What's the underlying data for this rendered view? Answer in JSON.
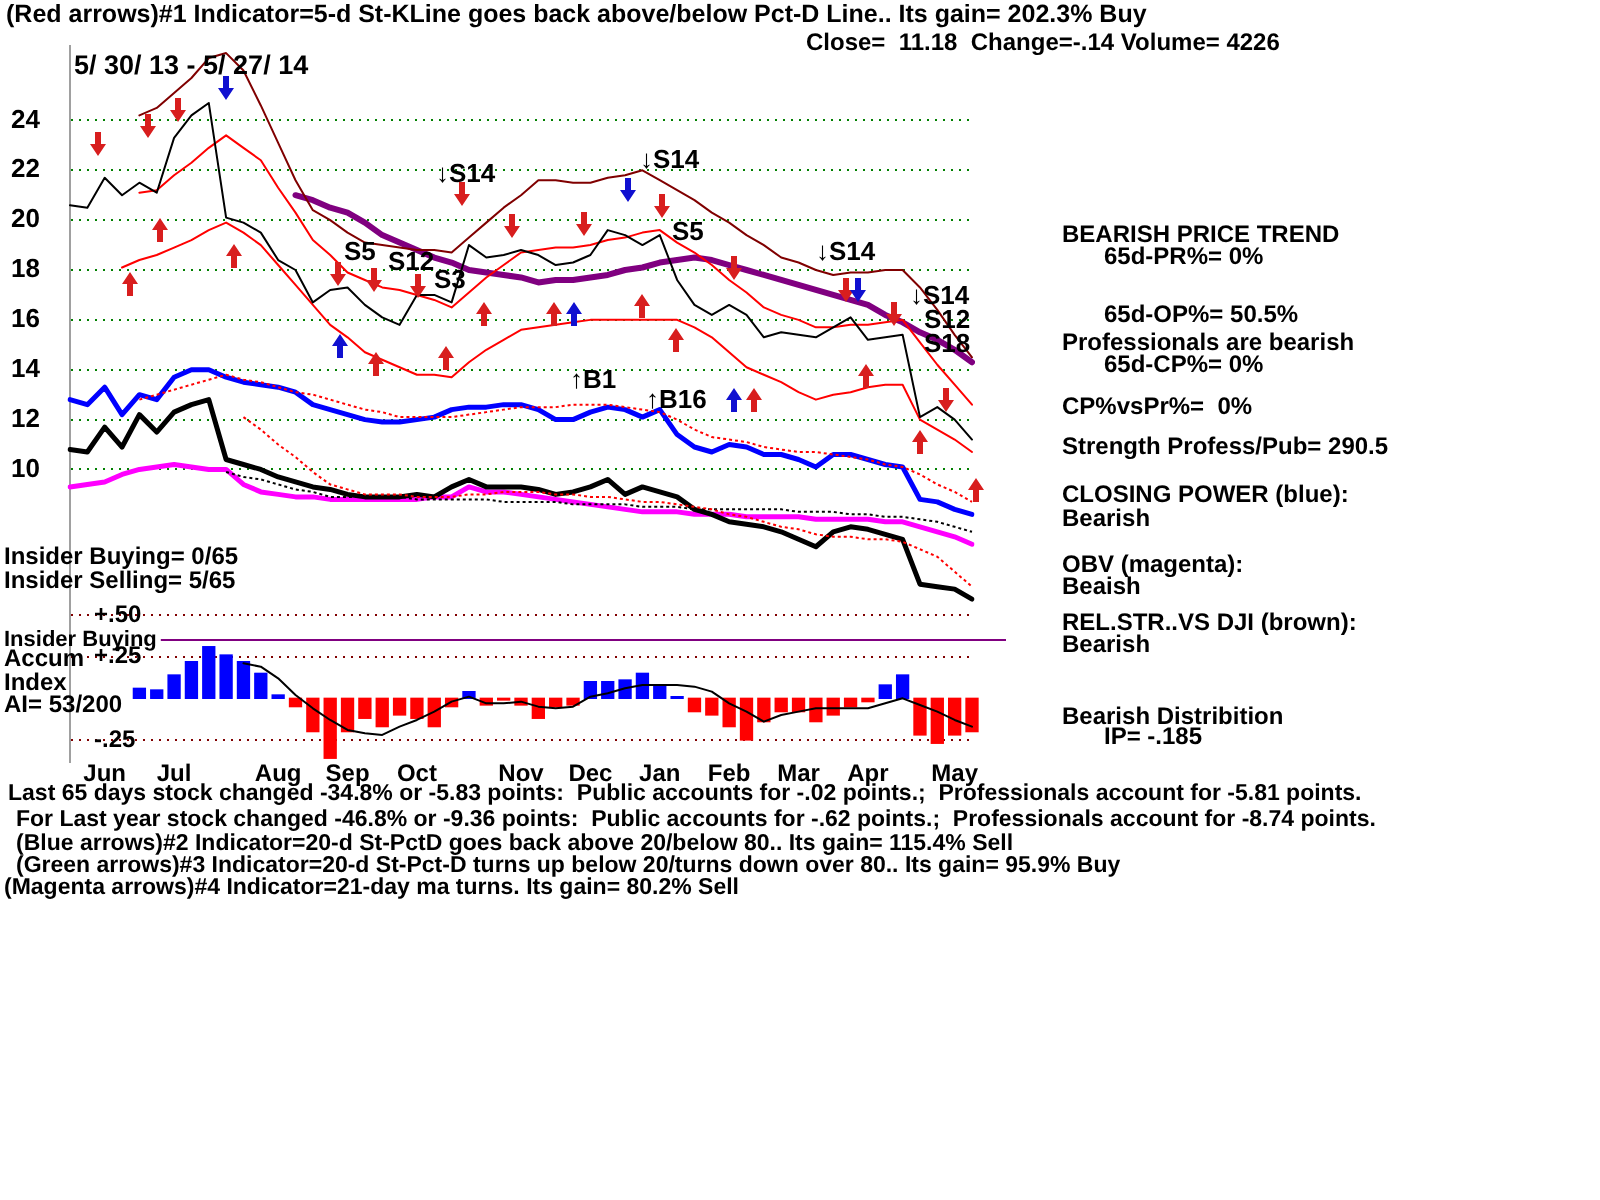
{
  "chart_data": [
    {
      "type": "line",
      "title": "(Red arrows)#1 Indicator=5-d St-KLine goes back above/below Pct-D Line.. Its gain= 202.3% Buy",
      "subtitle": "Close=  11.18  Change=-.14 Volume= 4226",
      "annotations": [
        "5/ 30/ 13 - 5/ 27/ 14",
        "Insider Buying= 0/65",
        "Insider Selling= 5/65",
        "↓S14",
        "S5",
        "S12",
        "S3",
        "↓S14",
        "S5",
        "↑B1",
        "↑B16",
        "↓S14",
        "↓S14",
        "S12",
        "S18"
      ],
      "categories": [
        null,
        null,
        null,
        null,
        null,
        null,
        null,
        null,
        null,
        null,
        null,
        null,
        null,
        null,
        null,
        null,
        null,
        null,
        null,
        null,
        null,
        null,
        null,
        null,
        null,
        null,
        null,
        null,
        null,
        null,
        null,
        null,
        null,
        null,
        null,
        null,
        null,
        null,
        null,
        null,
        null,
        null,
        null,
        null,
        null,
        null,
        null,
        null,
        null,
        null,
        null,
        null,
        null
      ],
      "ylim": [
        4.5,
        27
      ],
      "yticks": [
        10,
        12,
        14,
        16,
        18,
        20,
        22,
        24
      ],
      "grid": "y",
      "marker": "none",
      "series": [
        {
          "color": "#000000",
          "values": [
            20.6,
            20.5,
            21.7,
            21.0,
            21.5,
            21.1,
            23.3,
            24.2,
            24.7,
            20.1,
            19.9,
            19.5,
            18.4,
            18.0,
            16.7,
            17.2,
            17.3,
            16.6,
            16.1,
            15.8,
            17.0,
            17.0,
            16.7,
            19.0,
            18.5,
            18.6,
            18.8,
            18.6,
            18.2,
            18.3,
            18.6,
            19.6,
            19.4,
            19.0,
            19.4,
            17.6,
            16.6,
            16.2,
            16.6,
            16.2,
            15.3,
            15.5,
            15.4,
            15.3,
            15.7,
            16.1,
            15.2,
            15.3,
            15.4,
            12.1,
            12.5,
            12.0,
            11.2
          ]
        },
        {
          "color": "#ff0000",
          "values": [
            null,
            null,
            null,
            null,
            21.1,
            21.2,
            21.8,
            22.3,
            22.9,
            23.4,
            22.9,
            22.4,
            21.3,
            20.3,
            19.2,
            18.6,
            17.9,
            17.6,
            17.3,
            17.2,
            17.0,
            16.8,
            16.5,
            17.1,
            17.7,
            18.2,
            18.7,
            18.8,
            18.9,
            18.9,
            19.0,
            19.2,
            19.3,
            19.5,
            19.6,
            19.1,
            18.7,
            18.2,
            17.6,
            17.1,
            16.5,
            16.2,
            16.0,
            15.7,
            15.7,
            15.8,
            15.8,
            15.9,
            16.0,
            15.1,
            14.2,
            13.4,
            12.6
          ]
        },
        {
          "color": "#ff0000",
          "values": [
            null,
            null,
            null,
            18.1,
            18.4,
            18.6,
            18.9,
            19.2,
            19.6,
            19.9,
            19.5,
            19.0,
            18.2,
            17.4,
            16.6,
            15.8,
            15.3,
            14.7,
            14.4,
            14.1,
            13.8,
            13.8,
            13.7,
            14.3,
            14.8,
            15.2,
            15.6,
            15.7,
            15.8,
            15.9,
            16.0,
            16.0,
            16.0,
            16.0,
            16.0,
            16.0,
            15.7,
            15.3,
            14.7,
            14.1,
            13.8,
            13.5,
            13.1,
            12.8,
            13.0,
            13.1,
            13.3,
            13.4,
            13.4,
            12.0,
            11.6,
            11.2,
            10.7
          ]
        },
        {
          "color": "#800000",
          "values": [
            null,
            null,
            null,
            null,
            24.2,
            24.5,
            25.1,
            25.7,
            26.5,
            26.7,
            26.0,
            24.6,
            23.1,
            21.6,
            20.4,
            20.0,
            19.5,
            19.1,
            19.0,
            18.9,
            18.8,
            18.8,
            18.7,
            19.3,
            19.9,
            20.5,
            21.0,
            21.6,
            21.6,
            21.5,
            21.5,
            21.7,
            21.8,
            22.0,
            21.6,
            21.2,
            20.8,
            20.3,
            19.9,
            19.4,
            19.0,
            18.5,
            18.3,
            18.0,
            17.8,
            17.9,
            17.9,
            18.0,
            18.0,
            17.3,
            16.4,
            15.4,
            14.5
          ]
        },
        {
          "color": "#800080",
          "values": [
            null,
            null,
            null,
            null,
            null,
            null,
            null,
            null,
            null,
            null,
            null,
            null,
            null,
            21.0,
            20.8,
            20.5,
            20.3,
            19.9,
            19.4,
            19.1,
            18.8,
            18.5,
            18.3,
            18.0,
            17.9,
            17.8,
            17.7,
            17.5,
            17.6,
            17.6,
            17.7,
            17.8,
            18.0,
            18.1,
            18.3,
            18.4,
            18.5,
            18.4,
            18.2,
            18.0,
            17.8,
            17.6,
            17.4,
            17.2,
            17.0,
            16.8,
            16.6,
            16.2,
            15.9,
            15.5,
            15.2,
            14.8,
            14.3
          ]
        },
        {
          "color": "#0000ff",
          "values": [
            12.8,
            12.6,
            13.3,
            12.2,
            13.0,
            12.8,
            13.7,
            14.0,
            14.0,
            13.7,
            13.5,
            13.4,
            13.3,
            13.1,
            12.6,
            12.4,
            12.2,
            12.0,
            11.9,
            11.9,
            12.0,
            12.1,
            12.4,
            12.5,
            12.5,
            12.6,
            12.6,
            12.4,
            12.0,
            12.0,
            12.3,
            12.5,
            12.4,
            12.1,
            12.4,
            11.4,
            10.9,
            10.7,
            11.0,
            10.9,
            10.6,
            10.6,
            10.4,
            10.1,
            10.6,
            10.6,
            10.4,
            10.2,
            10.1,
            8.8,
            8.7,
            8.4,
            8.2
          ]
        },
        {
          "color": "#000000",
          "values": [
            10.8,
            10.7,
            11.7,
            10.9,
            12.2,
            11.5,
            12.3,
            12.6,
            12.8,
            10.4,
            10.2,
            10.0,
            9.7,
            9.5,
            9.3,
            9.2,
            9.0,
            8.9,
            8.9,
            8.9,
            9.0,
            8.9,
            9.3,
            9.6,
            9.3,
            9.3,
            9.3,
            9.2,
            9.0,
            9.1,
            9.3,
            9.6,
            9.0,
            9.3,
            9.1,
            8.9,
            8.4,
            8.2,
            7.9,
            7.8,
            7.7,
            7.5,
            7.2,
            6.9,
            7.5,
            7.7,
            7.6,
            7.4,
            7.2,
            5.4,
            5.3,
            5.2,
            4.8
          ]
        },
        {
          "color": "#ff00ff",
          "values": [
            9.3,
            9.4,
            9.5,
            9.8,
            10.0,
            10.1,
            10.2,
            10.1,
            10.0,
            10.0,
            9.4,
            9.1,
            9.0,
            8.9,
            8.9,
            8.8,
            8.8,
            8.8,
            8.8,
            8.8,
            8.8,
            8.9,
            8.9,
            9.3,
            9.1,
            9.1,
            9.0,
            8.9,
            8.8,
            8.7,
            8.6,
            8.5,
            8.4,
            8.3,
            8.3,
            8.3,
            8.2,
            8.2,
            8.2,
            8.1,
            8.1,
            8.1,
            8.1,
            8.0,
            8.0,
            8.0,
            8.0,
            7.9,
            7.9,
            7.7,
            7.5,
            7.3,
            7.0
          ]
        },
        {
          "color": "#ff0000",
          "line_style": "dotted",
          "values": [
            null,
            null,
            null,
            null,
            12.8,
            13.0,
            13.2,
            13.4,
            13.6,
            13.8,
            13.6,
            13.5,
            13.3,
            13.1,
            13.0,
            12.8,
            12.6,
            12.4,
            12.3,
            12.1,
            12.1,
            12.1,
            12.1,
            12.2,
            12.3,
            12.4,
            12.5,
            12.5,
            12.5,
            12.6,
            12.6,
            12.6,
            12.5,
            12.4,
            12.3,
            12.0,
            11.6,
            11.3,
            11.2,
            11.1,
            10.9,
            10.8,
            10.7,
            10.7,
            10.6,
            10.5,
            10.4,
            10.2,
            10.1,
            9.8,
            9.4,
            9.1,
            8.7
          ]
        },
        {
          "color": "#ff0000",
          "line_style": "dotted",
          "values": [
            null,
            null,
            null,
            null,
            null,
            null,
            null,
            null,
            null,
            null,
            12.1,
            11.6,
            11.0,
            10.5,
            9.9,
            9.4,
            9.2,
            9.0,
            9.0,
            9.0,
            8.9,
            8.9,
            8.9,
            9.0,
            9.0,
            9.1,
            9.1,
            9.1,
            9.0,
            9.0,
            8.9,
            8.9,
            8.8,
            8.7,
            8.7,
            8.6,
            8.5,
            8.4,
            8.2,
            8.1,
            7.9,
            7.7,
            7.6,
            7.4,
            7.3,
            7.3,
            7.2,
            7.2,
            7.1,
            6.8,
            6.5,
            5.9,
            5.3
          ]
        },
        {
          "color": "#000000",
          "line_style": "dotted",
          "values": [
            null,
            null,
            null,
            null,
            null,
            null,
            null,
            null,
            null,
            9.9,
            9.7,
            9.6,
            9.4,
            9.2,
            9.1,
            8.9,
            8.9,
            8.9,
            8.9,
            8.9,
            8.8,
            8.8,
            8.8,
            8.8,
            8.8,
            8.7,
            8.7,
            8.7,
            8.7,
            8.6,
            8.6,
            8.6,
            8.6,
            8.5,
            8.5,
            8.5,
            8.4,
            8.4,
            8.4,
            8.4,
            8.4,
            8.4,
            8.3,
            8.3,
            8.3,
            8.2,
            8.2,
            8.1,
            8.1,
            8.0,
            7.9,
            7.7,
            7.5
          ]
        }
      ]
    },
    {
      "type": "bar",
      "ylabel": "Accum Index",
      "annotations": [
        "AI= 53/200",
        "Last 65 days stock changed -34.8% or -5.83 points:  Public accounts for -.02 points.;  Professionals account for -5.81 points.",
        "For Last year stock changed -46.8% or -9.36 points:  Public accounts for -.62 points.;  Professionals account for -8.74 points.",
        "(Blue arrows)#2 Indicator=20-d St-PctD goes back above 20/below 80.. Its gain= 115.4% Sell",
        "(Green arrows)#3 Indicator=20-d St-Pct-D turns up below 20/turns down over 80.. Its gain= 95.9% Buy",
        "(Magenta arrows)#4 Indicator=21-day ma turns. Its gain= 80.2% Sell"
      ],
      "categories": [
        null,
        null,
        "Jun",
        null,
        null,
        null,
        "Jul",
        null,
        null,
        null,
        null,
        null,
        "Aug",
        null,
        null,
        null,
        "Sep",
        null,
        null,
        null,
        "Oct",
        null,
        null,
        null,
        null,
        null,
        "Nov",
        null,
        null,
        null,
        "Dec",
        null,
        null,
        null,
        "Jan",
        null,
        null,
        null,
        "Feb",
        null,
        null,
        null,
        "Mar",
        null,
        null,
        null,
        "Apr",
        null,
        null,
        null,
        null,
        "May",
        null
      ],
      "ylim": [
        -0.38,
        0.6
      ],
      "yticks": [
        {
          "value": 0.5,
          "label": "+.50"
        },
        {
          "value": 0.25,
          "label": "+.25"
        },
        {
          "value": -0.25,
          "label": "-.25"
        }
      ],
      "grid": "y",
      "marker": "none",
      "ref_lines": [
        {
          "axis": "y",
          "value": 0.35,
          "label": "Insider Buying",
          "color": "#800080"
        }
      ],
      "series": [
        {
          "type": "bar",
          "colors": [
            null,
            null,
            null,
            null,
            "#0000ff",
            "#0000ff",
            "#0000ff",
            "#0000ff",
            "#0000ff",
            "#0000ff",
            "#0000ff",
            "#0000ff",
            "#0000ff",
            "#ff0000",
            "#ff0000",
            "#ff0000",
            "#ff0000",
            "#ff0000",
            "#ff0000",
            "#ff0000",
            "#ff0000",
            "#ff0000",
            "#ff0000",
            "#0000ff",
            "#ff0000",
            "#ff0000",
            "#ff0000",
            "#ff0000",
            "#ff0000",
            "#ff0000",
            "#0000ff",
            "#0000ff",
            "#0000ff",
            "#0000ff",
            "#0000ff",
            "#0000ff",
            "#ff0000",
            "#ff0000",
            "#ff0000",
            "#ff0000",
            "#ff0000",
            "#ff0000",
            "#ff0000",
            "#ff0000",
            "#ff0000",
            "#ff0000",
            "#ff0000",
            "#0000ff",
            "#0000ff",
            "#ff0000",
            "#ff0000",
            "#ff0000",
            "#ff0000"
          ],
          "values": [
            null,
            null,
            null,
            null,
            0.06,
            0.05,
            0.14,
            0.22,
            0.31,
            0.26,
            0.22,
            0.15,
            0.02,
            -0.05,
            -0.2,
            -0.36,
            -0.2,
            -0.12,
            -0.17,
            -0.1,
            -0.12,
            -0.17,
            -0.05,
            0.04,
            -0.04,
            -0.01,
            -0.04,
            -0.12,
            -0.05,
            -0.04,
            0.1,
            0.1,
            0.11,
            0.15,
            0.08,
            0.01,
            -0.08,
            -0.1,
            -0.17,
            -0.25,
            -0.14,
            -0.08,
            -0.08,
            -0.14,
            -0.1,
            -0.05,
            -0.02,
            0.08,
            0.14,
            -0.22,
            -0.27,
            -0.22,
            -0.2
          ]
        },
        {
          "type": "line",
          "color": "#000000",
          "values": [
            null,
            null,
            null,
            null,
            null,
            null,
            null,
            null,
            null,
            null,
            0.21,
            0.19,
            0.12,
            0.02,
            -0.06,
            -0.13,
            -0.19,
            -0.21,
            -0.22,
            -0.17,
            -0.13,
            -0.08,
            -0.02,
            0.01,
            -0.03,
            -0.03,
            -0.02,
            -0.05,
            -0.06,
            -0.05,
            0.01,
            0.03,
            0.06,
            0.08,
            0.08,
            0.08,
            0.07,
            0.04,
            -0.03,
            -0.08,
            -0.14,
            -0.1,
            -0.08,
            -0.06,
            -0.06,
            -0.06,
            -0.06,
            -0.03,
            0.0,
            -0.04,
            -0.08,
            -0.13,
            -0.17
          ]
        }
      ]
    },
    {
      "type": "other",
      "annotations": [
        "BEARISH PRICE TREND",
        "65d-PR%= 0%",
        "65d-OP%= 50.5%",
        "Professionals are bearish",
        "65d-CP%= 0%",
        "CP%vsPr%=  0%",
        "Strength Profess/Pub= 290.5",
        "CLOSING POWER (blue):",
        "Bearish",
        "OBV (magenta):",
        "Beaish",
        "REL.STR..VS DJI (brown):",
        "Bearish",
        "Bearish Distribition",
        "IP= -.185"
      ]
    }
  ]
}
